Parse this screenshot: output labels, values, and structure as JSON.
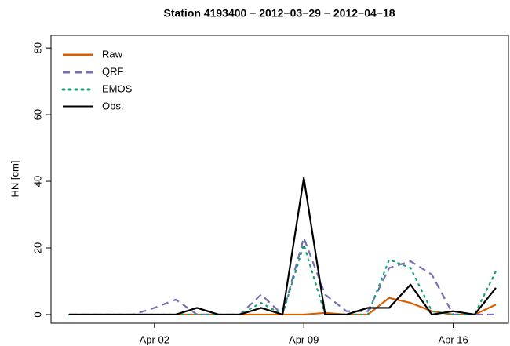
{
  "chart_data": {
    "type": "line",
    "title": "Station 4193400 − 2012−03−29 − 2012−04−18",
    "y_label": "HN [cm]",
    "categories": [
      null,
      null,
      null,
      null,
      "Apr 02",
      null,
      null,
      null,
      null,
      null,
      null,
      "Apr 09",
      null,
      null,
      null,
      null,
      null,
      null,
      "Apr 16",
      null,
      null
    ],
    "series": [
      {
        "name": "Raw",
        "color": "#d95f02",
        "dash": "solid",
        "values": [
          0,
          0,
          0,
          0,
          0,
          0,
          0,
          0,
          0,
          0,
          0,
          0,
          0.5,
          0,
          0,
          5,
          3.5,
          1,
          0,
          0,
          3
        ]
      },
      {
        "name": "QRF",
        "color": "#7570b3",
        "dash": "dashed",
        "values": [
          0,
          0,
          0,
          0,
          2,
          4.5,
          0,
          0,
          0,
          6,
          0,
          23,
          6,
          1,
          1,
          14,
          16,
          12,
          0,
          0,
          0
        ]
      },
      {
        "name": "EMOS",
        "color": "#1b9e77",
        "dash": "dotted",
        "values": [
          0,
          0,
          0,
          0,
          0,
          0,
          0,
          0,
          0,
          3.5,
          0,
          21,
          0,
          0,
          0,
          16.5,
          14,
          1,
          0,
          0,
          13
        ]
      },
      {
        "name": "Obs.",
        "color": "#000000",
        "dash": "solid",
        "values": [
          0,
          0,
          0,
          0,
          0,
          0,
          2,
          0,
          0,
          2,
          0,
          41,
          0,
          0,
          2,
          2,
          9,
          0,
          1,
          0,
          8
        ]
      }
    ],
    "ylim": [
      -2.6,
      83.8
    ],
    "yticks": [
      0,
      20,
      40,
      60,
      80
    ],
    "legend": "top-left"
  }
}
